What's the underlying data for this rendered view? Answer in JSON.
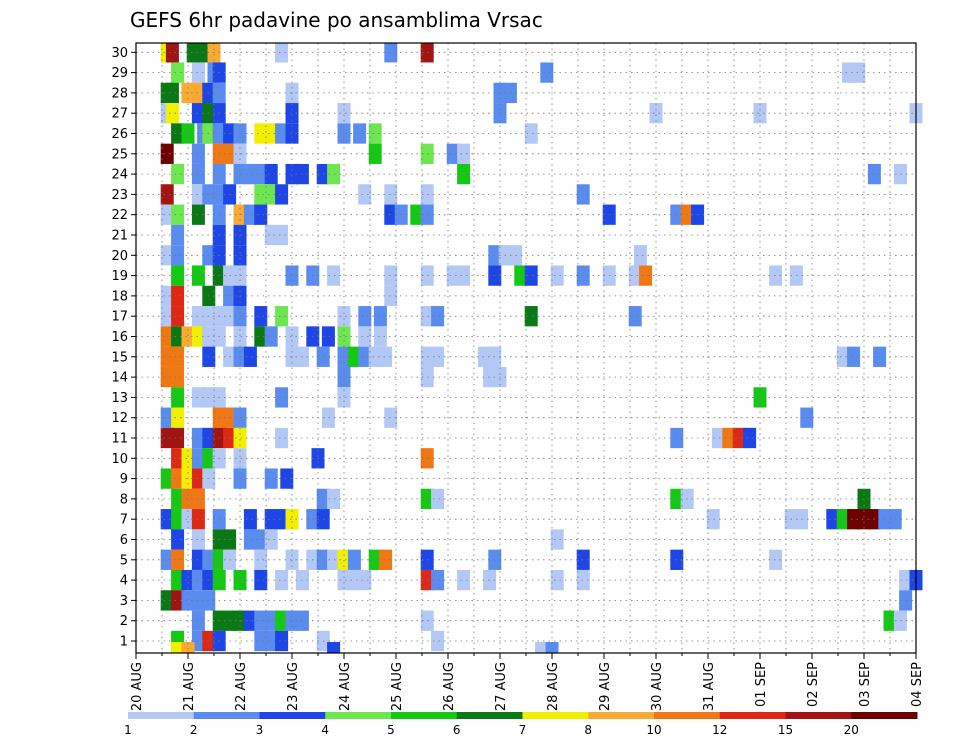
{
  "chart_data": {
    "type": "heatmap",
    "title": "GEFS 6hr padavine po ansamblima Vrsac",
    "y_ticks": [
      "1",
      "2",
      "3",
      "4",
      "5",
      "6",
      "7",
      "8",
      "9",
      "10",
      "11",
      "12",
      "13",
      "14",
      "15",
      "16",
      "17",
      "18",
      "19",
      "20",
      "21",
      "22",
      "23",
      "24",
      "25",
      "26",
      "27",
      "28",
      "29",
      "30"
    ],
    "x_ticks": [
      "20 AUG",
      "21 AUG",
      "22 AUG",
      "23 AUG",
      "24 AUG",
      "25 AUG",
      "26 AUG",
      "27 AUG",
      "28 AUG",
      "29 AUG",
      "30 AUG",
      "31 AUG",
      "01 SEP",
      "02 SEP",
      "03 SEP",
      "04 SEP"
    ],
    "x_range_days": [
      0,
      15
    ],
    "grid": true,
    "color_scale": {
      "labels": [
        "1",
        "2",
        "3",
        "4",
        "5",
        "6",
        "7",
        "8",
        "10",
        "12",
        "15",
        "20"
      ],
      "colors": [
        "#b4c8f5",
        "#5a8cf0",
        "#1e46e6",
        "#6ee650",
        "#14c814",
        "#0a7814",
        "#f0f000",
        "#faaa32",
        "#f07814",
        "#dc2814",
        "#a01414",
        "#6e0000"
      ]
    },
    "cells": [
      [
        0.6,
        30,
        7
      ],
      [
        0.7,
        30,
        11
      ],
      [
        1.1,
        30,
        6
      ],
      [
        1.3,
        30,
        6
      ],
      [
        1.5,
        30,
        8
      ],
      [
        2.8,
        30,
        1
      ],
      [
        4.9,
        30,
        2
      ],
      [
        5.6,
        30,
        11
      ],
      [
        0.8,
        29,
        4
      ],
      [
        1.2,
        29,
        1
      ],
      [
        1.5,
        29,
        2
      ],
      [
        1.6,
        29,
        3
      ],
      [
        7.9,
        29,
        2
      ],
      [
        13.7,
        29,
        1
      ],
      [
        13.9,
        29,
        1
      ],
      [
        0.6,
        28,
        6
      ],
      [
        0.7,
        28,
        6
      ],
      [
        1.0,
        28,
        8
      ],
      [
        1.2,
        28,
        8
      ],
      [
        1.4,
        28,
        3
      ],
      [
        1.6,
        28,
        2
      ],
      [
        3.0,
        28,
        1
      ],
      [
        7.0,
        28,
        2
      ],
      [
        7.2,
        28,
        2
      ],
      [
        0.6,
        27,
        1
      ],
      [
        0.7,
        27,
        7
      ],
      [
        1.2,
        27,
        3
      ],
      [
        1.4,
        27,
        6
      ],
      [
        1.6,
        27,
        3
      ],
      [
        3.0,
        27,
        3
      ],
      [
        4.0,
        27,
        1
      ],
      [
        7.0,
        27,
        2
      ],
      [
        10.0,
        27,
        1
      ],
      [
        12.0,
        27,
        1
      ],
      [
        15.0,
        27,
        1
      ],
      [
        0.8,
        26,
        6
      ],
      [
        1.0,
        26,
        5
      ],
      [
        1.3,
        26,
        2
      ],
      [
        1.4,
        26,
        4
      ],
      [
        1.6,
        26,
        2
      ],
      [
        1.8,
        26,
        3
      ],
      [
        2.0,
        26,
        2
      ],
      [
        2.4,
        26,
        7
      ],
      [
        2.6,
        26,
        7
      ],
      [
        2.8,
        26,
        2
      ],
      [
        3.0,
        26,
        3
      ],
      [
        4.0,
        26,
        2
      ],
      [
        4.3,
        26,
        2
      ],
      [
        4.6,
        26,
        4
      ],
      [
        7.6,
        26,
        1
      ],
      [
        0.6,
        25,
        12
      ],
      [
        1.2,
        25,
        2
      ],
      [
        1.6,
        25,
        9
      ],
      [
        1.8,
        25,
        9
      ],
      [
        2.0,
        25,
        1
      ],
      [
        4.6,
        25,
        5
      ],
      [
        5.6,
        25,
        4
      ],
      [
        6.1,
        25,
        2
      ],
      [
        6.3,
        25,
        1
      ],
      [
        0.8,
        24,
        4
      ],
      [
        1.2,
        24,
        2
      ],
      [
        1.6,
        24,
        2
      ],
      [
        2.0,
        24,
        2
      ],
      [
        2.2,
        24,
        2
      ],
      [
        2.4,
        24,
        2
      ],
      [
        2.6,
        24,
        3
      ],
      [
        3.0,
        24,
        3
      ],
      [
        3.2,
        24,
        3
      ],
      [
        3.6,
        24,
        3
      ],
      [
        3.8,
        24,
        4
      ],
      [
        6.3,
        24,
        5
      ],
      [
        14.2,
        24,
        2
      ],
      [
        14.7,
        24,
        1
      ],
      [
        0.6,
        23,
        11
      ],
      [
        1.2,
        23,
        1
      ],
      [
        1.4,
        23,
        2
      ],
      [
        1.6,
        23,
        2
      ],
      [
        1.8,
        23,
        3
      ],
      [
        2.4,
        23,
        4
      ],
      [
        2.6,
        23,
        4
      ],
      [
        2.8,
        23,
        3
      ],
      [
        4.4,
        23,
        1
      ],
      [
        4.9,
        23,
        1
      ],
      [
        5.6,
        23,
        1
      ],
      [
        8.6,
        23,
        2
      ],
      [
        0.6,
        22,
        1
      ],
      [
        0.8,
        22,
        4
      ],
      [
        1.2,
        22,
        6
      ],
      [
        1.6,
        22,
        2
      ],
      [
        2.0,
        22,
        8
      ],
      [
        2.2,
        22,
        2
      ],
      [
        2.4,
        22,
        3
      ],
      [
        4.9,
        22,
        3
      ],
      [
        5.1,
        22,
        2
      ],
      [
        5.4,
        22,
        5
      ],
      [
        5.6,
        22,
        2
      ],
      [
        9.1,
        22,
        3
      ],
      [
        10.4,
        22,
        2
      ],
      [
        10.6,
        22,
        9
      ],
      [
        10.8,
        22,
        3
      ],
      [
        0.8,
        21,
        2
      ],
      [
        1.6,
        21,
        3
      ],
      [
        2.0,
        21,
        3
      ],
      [
        2.6,
        21,
        1
      ],
      [
        2.8,
        21,
        1
      ],
      [
        0.6,
        20,
        1
      ],
      [
        0.8,
        20,
        2
      ],
      [
        1.4,
        20,
        2
      ],
      [
        1.6,
        20,
        3
      ],
      [
        2.0,
        20,
        3
      ],
      [
        6.9,
        20,
        2
      ],
      [
        7.1,
        20,
        1
      ],
      [
        7.3,
        20,
        1
      ],
      [
        9.7,
        20,
        1
      ],
      [
        0.8,
        19,
        5
      ],
      [
        1.2,
        19,
        5
      ],
      [
        1.6,
        19,
        6
      ],
      [
        1.8,
        19,
        1
      ],
      [
        2.0,
        19,
        1
      ],
      [
        3.0,
        19,
        2
      ],
      [
        3.4,
        19,
        2
      ],
      [
        3.8,
        19,
        1
      ],
      [
        4.9,
        19,
        1
      ],
      [
        5.6,
        19,
        1
      ],
      [
        6.1,
        19,
        1
      ],
      [
        6.3,
        19,
        1
      ],
      [
        6.9,
        19,
        3
      ],
      [
        7.4,
        19,
        5
      ],
      [
        7.6,
        19,
        3
      ],
      [
        8.1,
        19,
        1
      ],
      [
        8.6,
        19,
        2
      ],
      [
        9.1,
        19,
        1
      ],
      [
        9.6,
        19,
        1
      ],
      [
        9.8,
        19,
        9
      ],
      [
        12.3,
        19,
        1
      ],
      [
        12.7,
        19,
        1
      ],
      [
        0.6,
        18,
        1
      ],
      [
        0.8,
        18,
        10
      ],
      [
        1.4,
        18,
        6
      ],
      [
        1.8,
        18,
        2
      ],
      [
        2.0,
        18,
        3
      ],
      [
        4.9,
        18,
        1
      ],
      [
        0.6,
        17,
        1
      ],
      [
        0.8,
        17,
        10
      ],
      [
        1.2,
        17,
        1
      ],
      [
        1.4,
        17,
        1
      ],
      [
        1.6,
        17,
        1
      ],
      [
        1.8,
        17,
        1
      ],
      [
        2.0,
        17,
        2
      ],
      [
        2.4,
        17,
        3
      ],
      [
        2.8,
        17,
        4
      ],
      [
        4.0,
        17,
        1
      ],
      [
        4.4,
        17,
        2
      ],
      [
        4.7,
        17,
        2
      ],
      [
        5.6,
        17,
        1
      ],
      [
        5.8,
        17,
        2
      ],
      [
        7.6,
        17,
        6
      ],
      [
        9.6,
        17,
        2
      ],
      [
        0.6,
        16,
        9
      ],
      [
        0.8,
        16,
        6
      ],
      [
        1.0,
        16,
        8
      ],
      [
        1.2,
        16,
        7
      ],
      [
        1.4,
        16,
        1
      ],
      [
        1.6,
        16,
        1
      ],
      [
        2.0,
        16,
        1
      ],
      [
        2.4,
        16,
        6
      ],
      [
        2.6,
        16,
        2
      ],
      [
        3.0,
        16,
        1
      ],
      [
        3.4,
        16,
        3
      ],
      [
        3.7,
        16,
        3
      ],
      [
        4.0,
        16,
        4
      ],
      [
        4.4,
        16,
        1
      ],
      [
        4.7,
        16,
        1
      ],
      [
        0.6,
        15,
        9
      ],
      [
        0.8,
        15,
        9
      ],
      [
        1.4,
        15,
        3
      ],
      [
        1.8,
        15,
        1
      ],
      [
        2.0,
        15,
        2
      ],
      [
        2.2,
        15,
        3
      ],
      [
        3.0,
        15,
        1
      ],
      [
        3.2,
        15,
        1
      ],
      [
        3.6,
        15,
        2
      ],
      [
        4.0,
        15,
        2
      ],
      [
        4.2,
        15,
        5
      ],
      [
        4.4,
        15,
        2
      ],
      [
        4.6,
        15,
        1
      ],
      [
        4.8,
        15,
        1
      ],
      [
        5.6,
        15,
        1
      ],
      [
        5.8,
        15,
        1
      ],
      [
        6.7,
        15,
        1
      ],
      [
        6.9,
        15,
        1
      ],
      [
        13.6,
        15,
        1
      ],
      [
        13.8,
        15,
        2
      ],
      [
        14.3,
        15,
        2
      ],
      [
        0.6,
        14,
        9
      ],
      [
        0.8,
        14,
        9
      ],
      [
        4.0,
        14,
        2
      ],
      [
        5.6,
        14,
        1
      ],
      [
        6.8,
        14,
        1
      ],
      [
        7.0,
        14,
        1
      ],
      [
        0.8,
        13,
        5
      ],
      [
        1.2,
        13,
        1
      ],
      [
        1.4,
        13,
        1
      ],
      [
        1.6,
        13,
        1
      ],
      [
        2.8,
        13,
        2
      ],
      [
        4.0,
        13,
        1
      ],
      [
        12.0,
        13,
        5
      ],
      [
        0.6,
        12,
        2
      ],
      [
        0.8,
        12,
        7
      ],
      [
        1.6,
        12,
        9
      ],
      [
        1.8,
        12,
        9
      ],
      [
        2.0,
        12,
        2
      ],
      [
        3.7,
        12,
        1
      ],
      [
        4.9,
        12,
        1
      ],
      [
        12.9,
        12,
        2
      ],
      [
        0.6,
        11,
        11
      ],
      [
        0.8,
        11,
        11
      ],
      [
        1.2,
        11,
        2
      ],
      [
        1.4,
        11,
        3
      ],
      [
        1.6,
        11,
        11
      ],
      [
        1.8,
        11,
        10
      ],
      [
        2.0,
        11,
        7
      ],
      [
        2.8,
        11,
        1
      ],
      [
        10.4,
        11,
        2
      ],
      [
        11.2,
        11,
        1
      ],
      [
        11.4,
        11,
        9
      ],
      [
        11.6,
        11,
        10
      ],
      [
        11.8,
        11,
        3
      ],
      [
        0.8,
        10,
        10
      ],
      [
        1.0,
        10,
        7
      ],
      [
        1.2,
        10,
        2
      ],
      [
        1.4,
        10,
        5
      ],
      [
        1.6,
        10,
        1
      ],
      [
        2.0,
        10,
        1
      ],
      [
        3.5,
        10,
        3
      ],
      [
        5.6,
        10,
        9
      ],
      [
        0.6,
        9,
        5
      ],
      [
        0.8,
        9,
        9
      ],
      [
        1.0,
        9,
        7
      ],
      [
        1.2,
        9,
        10
      ],
      [
        1.4,
        9,
        1
      ],
      [
        2.0,
        9,
        2
      ],
      [
        2.6,
        9,
        2
      ],
      [
        2.9,
        9,
        3
      ],
      [
        0.8,
        8,
        5
      ],
      [
        1.0,
        8,
        9
      ],
      [
        1.2,
        8,
        9
      ],
      [
        3.6,
        8,
        2
      ],
      [
        3.8,
        8,
        1
      ],
      [
        5.6,
        8,
        5
      ],
      [
        5.8,
        8,
        1
      ],
      [
        10.4,
        8,
        5
      ],
      [
        10.6,
        8,
        1
      ],
      [
        14.0,
        8,
        6
      ],
      [
        0.6,
        7,
        3
      ],
      [
        0.8,
        7,
        5
      ],
      [
        1.0,
        7,
        1
      ],
      [
        1.2,
        7,
        10
      ],
      [
        1.6,
        7,
        2
      ],
      [
        2.2,
        7,
        3
      ],
      [
        2.6,
        7,
        3
      ],
      [
        2.8,
        7,
        3
      ],
      [
        3.0,
        7,
        7
      ],
      [
        3.4,
        7,
        2
      ],
      [
        3.6,
        7,
        3
      ],
      [
        11.1,
        7,
        1
      ],
      [
        12.6,
        7,
        1
      ],
      [
        12.8,
        7,
        1
      ],
      [
        13.4,
        7,
        3
      ],
      [
        13.6,
        7,
        5
      ],
      [
        13.8,
        7,
        12
      ],
      [
        14.0,
        7,
        12
      ],
      [
        14.2,
        7,
        12
      ],
      [
        14.4,
        7,
        2
      ],
      [
        14.6,
        7,
        2
      ],
      [
        0.8,
        6,
        3
      ],
      [
        1.2,
        6,
        1
      ],
      [
        1.6,
        6,
        6
      ],
      [
        1.8,
        6,
        6
      ],
      [
        2.2,
        6,
        2
      ],
      [
        2.4,
        6,
        2
      ],
      [
        2.6,
        6,
        1
      ],
      [
        8.1,
        6,
        1
      ],
      [
        0.6,
        5,
        2
      ],
      [
        0.8,
        5,
        9
      ],
      [
        1.2,
        5,
        3
      ],
      [
        1.4,
        5,
        2
      ],
      [
        1.6,
        5,
        5
      ],
      [
        1.8,
        5,
        1
      ],
      [
        2.4,
        5,
        1
      ],
      [
        3.0,
        5,
        1
      ],
      [
        3.4,
        5,
        1
      ],
      [
        3.6,
        5,
        2
      ],
      [
        3.8,
        5,
        1
      ],
      [
        4.0,
        5,
        7
      ],
      [
        4.2,
        5,
        2
      ],
      [
        4.6,
        5,
        5
      ],
      [
        4.8,
        5,
        9
      ],
      [
        5.6,
        5,
        3
      ],
      [
        6.9,
        5,
        2
      ],
      [
        8.6,
        5,
        3
      ],
      [
        10.4,
        5,
        3
      ],
      [
        12.3,
        5,
        1
      ],
      [
        0.8,
        4,
        5
      ],
      [
        1.0,
        4,
        3
      ],
      [
        1.2,
        4,
        2
      ],
      [
        1.4,
        4,
        3
      ],
      [
        1.6,
        4,
        5
      ],
      [
        2.0,
        4,
        5
      ],
      [
        2.4,
        4,
        3
      ],
      [
        2.8,
        4,
        1
      ],
      [
        3.2,
        4,
        1
      ],
      [
        4.0,
        4,
        1
      ],
      [
        4.2,
        4,
        1
      ],
      [
        4.4,
        4,
        1
      ],
      [
        5.6,
        4,
        10
      ],
      [
        5.8,
        4,
        2
      ],
      [
        6.3,
        4,
        1
      ],
      [
        6.8,
        4,
        1
      ],
      [
        8.1,
        4,
        1
      ],
      [
        8.6,
        4,
        1
      ],
      [
        14.8,
        4,
        1
      ],
      [
        15.0,
        4,
        3
      ],
      [
        0.6,
        3,
        6
      ],
      [
        0.8,
        3,
        11
      ],
      [
        1.0,
        3,
        2
      ],
      [
        1.2,
        3,
        2
      ],
      [
        1.4,
        3,
        2
      ],
      [
        14.8,
        3,
        2
      ],
      [
        1.2,
        2,
        2
      ],
      [
        1.6,
        2,
        6
      ],
      [
        1.8,
        2,
        6
      ],
      [
        2.0,
        2,
        6
      ],
      [
        2.2,
        2,
        3
      ],
      [
        2.4,
        2,
        2
      ],
      [
        2.6,
        2,
        2
      ],
      [
        2.8,
        2,
        5
      ],
      [
        3.0,
        2,
        2
      ],
      [
        3.2,
        2,
        2
      ],
      [
        5.6,
        2,
        1
      ],
      [
        14.5,
        2,
        5
      ],
      [
        14.7,
        2,
        1
      ],
      [
        0.8,
        1,
        5
      ],
      [
        1.2,
        1,
        2
      ],
      [
        1.4,
        1,
        10
      ],
      [
        1.6,
        1,
        3
      ],
      [
        2.4,
        1,
        2
      ],
      [
        2.6,
        1,
        2
      ],
      [
        2.8,
        1,
        3
      ],
      [
        3.6,
        1,
        1
      ],
      [
        5.8,
        1,
        1
      ],
      [
        0.8,
        0.45,
        7
      ],
      [
        1.0,
        0.45,
        8
      ],
      [
        3.8,
        0.45,
        3
      ],
      [
        7.8,
        0.45,
        1
      ],
      [
        8.0,
        0.45,
        2
      ]
    ]
  }
}
